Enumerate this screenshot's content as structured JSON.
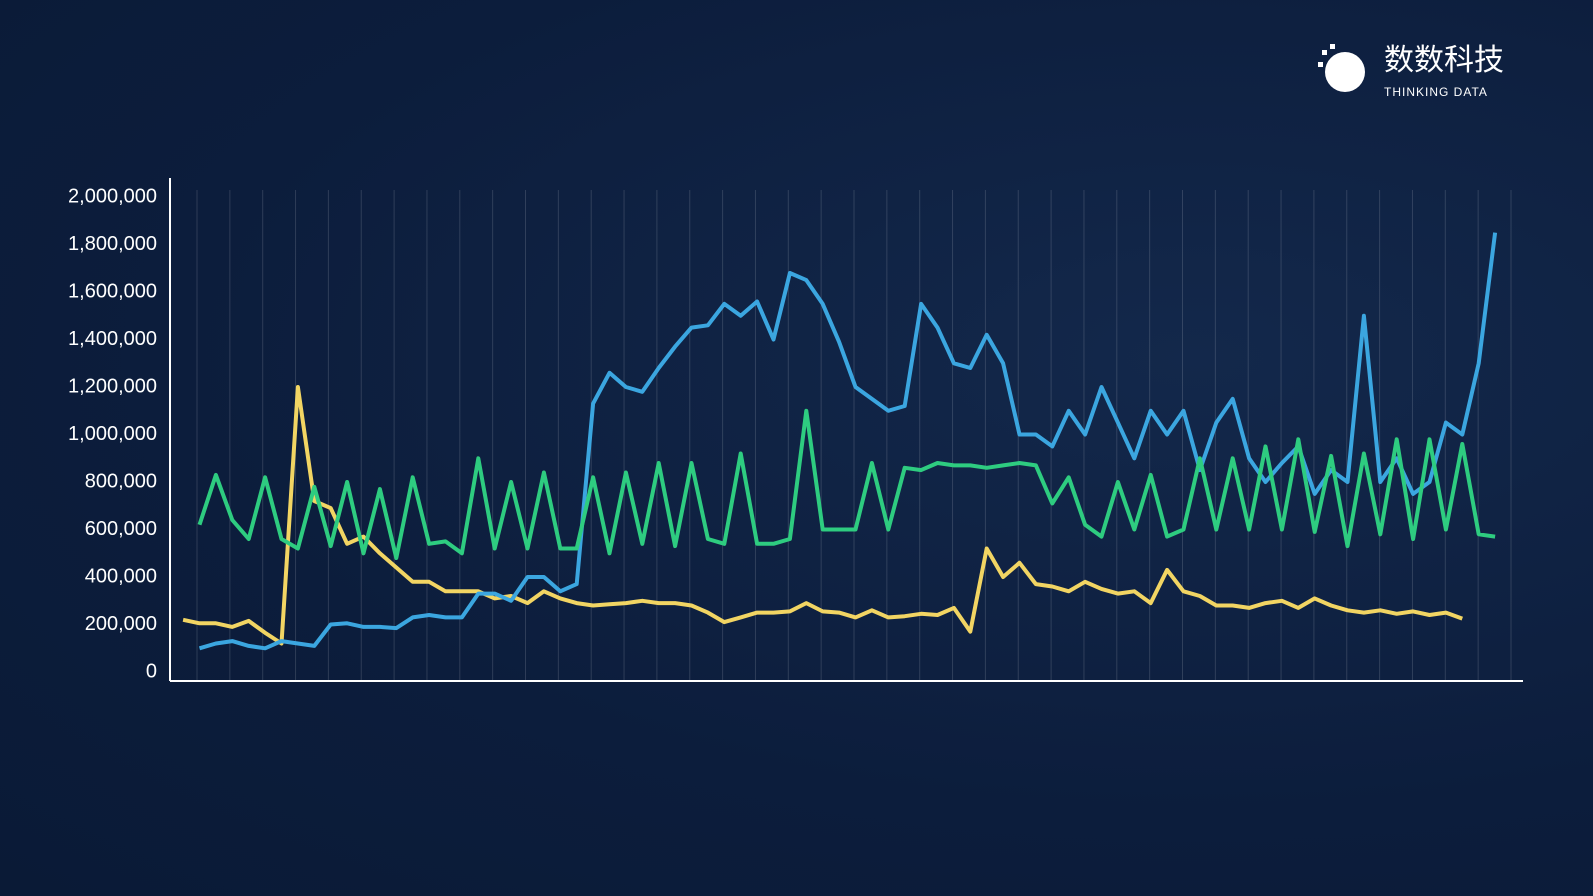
{
  "brand": {
    "name": "数数科技",
    "subtitle": "THINKING DATA"
  },
  "chart_data": {
    "type": "line",
    "x": [
      0,
      1,
      2,
      3,
      4,
      5,
      6,
      7,
      8,
      9,
      10,
      11,
      12,
      13,
      14,
      15,
      16,
      17,
      18,
      19,
      20,
      21,
      22,
      23,
      24,
      25,
      26,
      27,
      28,
      29,
      30,
      31,
      32,
      33,
      34,
      35,
      36,
      37,
      38,
      39,
      40,
      41,
      42,
      43,
      44,
      45,
      46,
      47,
      48,
      49,
      50,
      51,
      52,
      53,
      54,
      55,
      56,
      57,
      58,
      59,
      60,
      61,
      62,
      63,
      64,
      65,
      66,
      67,
      68,
      69,
      70,
      71,
      72,
      73,
      74,
      75,
      76,
      77,
      78,
      79,
      80
    ],
    "xlim": [
      -0.8,
      81.7
    ],
    "ylim": [
      0,
      2000000
    ],
    "yticks": [
      0,
      {
        "value": 200000,
        "label": "200,000"
      },
      {
        "value": 400000,
        "label": "400,000"
      },
      {
        "value": 600000,
        "label": "600,000"
      },
      {
        "value": 800000,
        "label": "800,000"
      },
      {
        "value": 1000000,
        "label": "1,000,000"
      },
      {
        "value": 1200000,
        "label": "1,200,000"
      },
      {
        "value": 1400000,
        "label": "1,400,000"
      },
      {
        "value": 1600000,
        "label": "1,600,000"
      },
      {
        "value": 1800000,
        "label": "1,800,000"
      },
      {
        "value": 2000000,
        "label": "2,000,000"
      }
    ],
    "grid": true,
    "series": [
      {
        "color": "#f2d563",
        "values": [
          220000,
          205000,
          205000,
          190000,
          215000,
          165000,
          120000,
          1200000,
          720000,
          690000,
          540000,
          570000,
          500000,
          440000,
          380000,
          380000,
          340000,
          340000,
          340000,
          310000,
          320000,
          290000,
          340000,
          310000,
          290000,
          280000,
          285000,
          290000,
          300000,
          290000,
          290000,
          280000,
          250000,
          210000,
          230000,
          250000,
          250000,
          255000,
          290000,
          255000,
          250000,
          230000,
          260000,
          230000,
          235000,
          245000,
          240000,
          270000,
          170000,
          520000,
          400000,
          460000,
          370000,
          360000,
          340000,
          380000,
          350000,
          330000,
          340000,
          290000,
          430000,
          340000,
          320000,
          280000,
          280000,
          270000,
          290000,
          300000,
          270000,
          310000,
          280000,
          260000,
          250000,
          260000,
          245000,
          255000,
          240000,
          250000,
          225000,
          null,
          null
        ]
      },
      {
        "color": "#3ba6e0",
        "values": [
          null,
          100000,
          120000,
          130000,
          110000,
          100000,
          130000,
          120000,
          110000,
          200000,
          205000,
          190000,
          190000,
          185000,
          230000,
          240000,
          230000,
          230000,
          330000,
          330000,
          300000,
          400000,
          400000,
          340000,
          370000,
          1130000,
          1260000,
          1200000,
          1180000,
          1280000,
          1370000,
          1450000,
          1460000,
          1550000,
          1500000,
          1560000,
          1400000,
          1680000,
          1650000,
          1550000,
          1390000,
          1200000,
          1150000,
          1100000,
          1120000,
          1550000,
          1450000,
          1300000,
          1280000,
          1420000,
          1300000,
          1000000,
          1000000,
          950000,
          1100000,
          1000000,
          1200000,
          1050000,
          900000,
          1100000,
          1000000,
          1100000,
          850000,
          1050000,
          1150000,
          900000,
          800000,
          880000,
          950000,
          750000,
          850000,
          800000,
          1500000,
          800000,
          900000,
          750000,
          800000,
          1050000,
          1000000,
          1300000,
          1850000
        ]
      },
      {
        "color": "#2ecc80",
        "values": [
          null,
          620000,
          830000,
          640000,
          560000,
          820000,
          560000,
          520000,
          780000,
          530000,
          800000,
          500000,
          770000,
          480000,
          820000,
          540000,
          550000,
          500000,
          900000,
          520000,
          800000,
          520000,
          840000,
          520000,
          520000,
          820000,
          500000,
          840000,
          540000,
          880000,
          530000,
          880000,
          560000,
          540000,
          920000,
          540000,
          540000,
          560000,
          1100000,
          600000,
          600000,
          600000,
          880000,
          600000,
          860000,
          850000,
          880000,
          870000,
          870000,
          860000,
          870000,
          880000,
          870000,
          710000,
          820000,
          620000,
          570000,
          800000,
          600000,
          830000,
          570000,
          600000,
          900000,
          600000,
          900000,
          600000,
          950000,
          600000,
          980000,
          590000,
          910000,
          530000,
          920000,
          580000,
          980000,
          560000,
          980000,
          600000,
          960000,
          580000,
          570000
        ]
      }
    ]
  }
}
